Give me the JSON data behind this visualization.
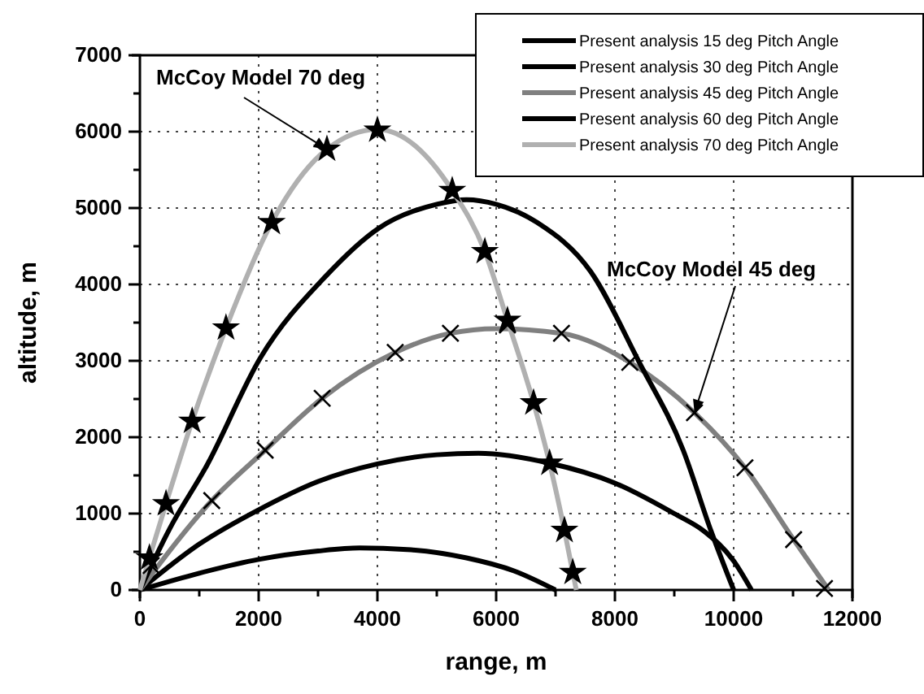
{
  "chart_data": {
    "type": "line",
    "xlabel": "range, m",
    "ylabel": "altitude, m",
    "xlim": [
      0,
      12000
    ],
    "ylim": [
      0,
      7000
    ],
    "xticks": [
      0,
      {
        "value": 1000,
        "label": null
      },
      2000,
      {
        "value": 3000,
        "label": null
      },
      4000,
      {
        "value": 5000,
        "label": null
      },
      6000,
      {
        "value": 7000,
        "label": null
      },
      8000,
      {
        "value": 9000,
        "label": null
      },
      10000,
      {
        "value": 11000,
        "label": null
      },
      12000
    ],
    "yticks": [
      0,
      {
        "value": 500,
        "label": null
      },
      1000,
      {
        "value": 1500,
        "label": null
      },
      2000,
      {
        "value": 2500,
        "label": null
      },
      3000,
      {
        "value": 3500,
        "label": null
      },
      4000,
      {
        "value": 4500,
        "label": null
      },
      5000,
      {
        "value": 5500,
        "label": null
      },
      6000,
      {
        "value": 6500,
        "label": null
      },
      7000
    ],
    "grid": true,
    "legend": "top right",
    "line_style": "solid",
    "series": [
      {
        "name": "Present analysis 15 deg Pitch Angle",
        "color": "#000000",
        "x": [
          0,
          1000,
          2000,
          3000,
          3700,
          4500,
          5500,
          6300,
          7000
        ],
        "values": [
          0,
          220,
          400,
          510,
          550,
          530,
          420,
          250,
          0
        ]
      },
      {
        "name": "Present analysis 30 deg Pitch Angle",
        "color": "#000000",
        "x": [
          0,
          1000,
          2000,
          3000,
          4000,
          5000,
          5700,
          6900,
          8000,
          9000,
          9500,
          10000,
          10300
        ],
        "values": [
          0,
          600,
          1050,
          1420,
          1650,
          1770,
          1790,
          1660,
          1400,
          1000,
          770,
          380,
          0
        ]
      },
      {
        "name": "Present analysis 45 deg Pitch Angle",
        "color": "#808080",
        "x": [
          0,
          1210,
          2110,
          3070,
          4300,
          5230,
          6000,
          7100,
          8250,
          9340,
          10190,
          11010,
          11600
        ],
        "values": [
          0,
          1170,
          1830,
          2510,
          3110,
          3360,
          3420,
          3360,
          2980,
          2320,
          1600,
          660,
          0
        ]
      },
      {
        "name": "Present analysis 60 deg Pitch Angle",
        "color": "#000000",
        "x": [
          0,
          500,
          1120,
          2030,
          3120,
          4030,
          5000,
          5500,
          6000,
          6690,
          7590,
          8410,
          9150,
          9620,
          10000
        ],
        "values": [
          0,
          800,
          1620,
          3040,
          4100,
          4740,
          5050,
          5110,
          5050,
          4810,
          4170,
          2980,
          1830,
          770,
          0
        ]
      },
      {
        "name": "Present analysis 70 deg Pitch Angle",
        "color": "#b0b0b0",
        "x": [
          0,
          160,
          440,
          880,
          1450,
          2220,
          3150,
          4000,
          5260,
          5810,
          6190,
          6630,
          6900,
          7150,
          7290,
          7350
        ],
        "values": [
          0,
          420,
          1130,
          2210,
          3430,
          4810,
          5770,
          6030,
          5230,
          4430,
          3530,
          2450,
          1660,
          780,
          230,
          0
        ]
      },
      {
        "type": "scatter",
        "marker": "star",
        "color": "#000000",
        "x": [
          160,
          440,
          880,
          1450,
          2220,
          3150,
          4000,
          5260,
          5810,
          6190,
          6630,
          6900,
          7150,
          7290
        ],
        "values": [
          420,
          1130,
          2210,
          3430,
          4810,
          5770,
          6020,
          5230,
          4430,
          3530,
          2450,
          1660,
          780,
          230
        ]
      },
      {
        "type": "scatter",
        "marker": "cross",
        "color": "#000000",
        "x": [
          190,
          1210,
          2110,
          3070,
          4300,
          5230,
          6190,
          7100,
          8250,
          9340,
          10190,
          11010,
          11530
        ],
        "values": [
          320,
          1170,
          1830,
          2510,
          3110,
          3360,
          3470,
          3360,
          2980,
          2320,
          1600,
          660,
          20
        ]
      }
    ],
    "annotations": [
      {
        "text": "McCoy Model 70 deg",
        "x": 3150,
        "y": 5770
      },
      {
        "text": "McCoy Model 45 deg",
        "x": 9340,
        "y": 2320
      }
    ]
  }
}
